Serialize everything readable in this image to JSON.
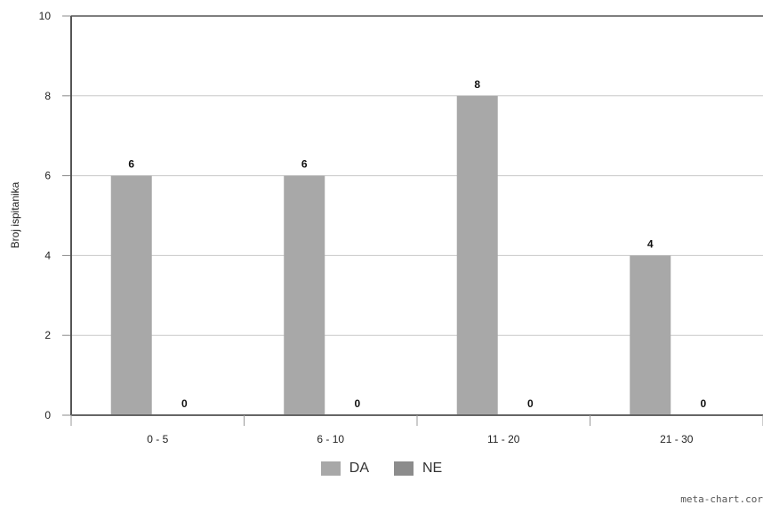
{
  "chart_data": {
    "type": "bar",
    "categories": [
      "0 - 5",
      "6 - 10",
      "11 - 20",
      "21 - 30"
    ],
    "series": [
      {
        "name": "DA",
        "values": [
          6,
          6,
          8,
          4
        ],
        "color": "#a8a8a8"
      },
      {
        "name": "NE",
        "values": [
          0,
          0,
          0,
          0
        ],
        "color": "#8c8c8c"
      }
    ],
    "ylabel": "Broj ispitanika",
    "xlabel": "",
    "ylim": [
      0,
      10
    ],
    "yticks": [
      0,
      2,
      4,
      6,
      8,
      10
    ],
    "grid": true,
    "legend": "bottom-center"
  },
  "credit": "meta-chart.cor"
}
